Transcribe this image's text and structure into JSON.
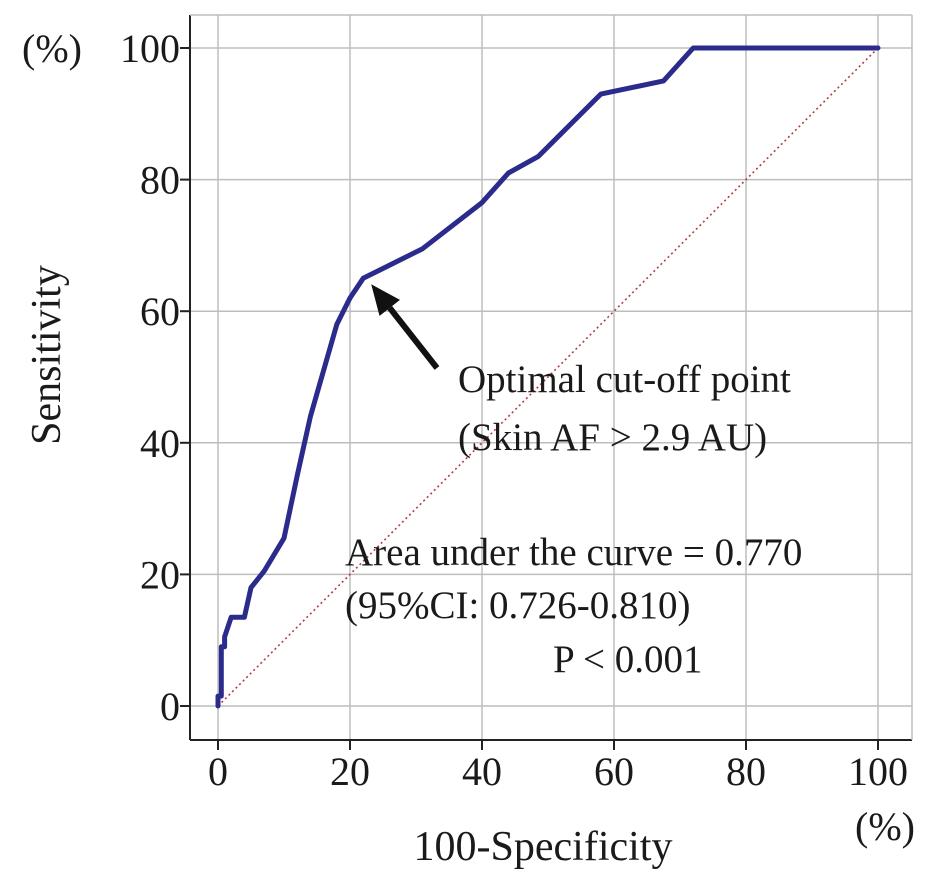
{
  "chart_data": {
    "type": "line",
    "title": "",
    "xlabel": "100-Specificity",
    "ylabel": "Sensitivity",
    "x_unit": "(%)",
    "y_unit": "(%)",
    "xlim": [
      0,
      100
    ],
    "ylim": [
      0,
      100
    ],
    "x_ticks": [
      0,
      20,
      40,
      60,
      80,
      100
    ],
    "y_ticks": [
      0,
      20,
      40,
      60,
      80,
      100
    ],
    "grid": true,
    "series": [
      {
        "color": "#2b2b8c",
        "x": [
          0,
          0,
          0.5,
          0.5,
          1,
          1,
          1.5,
          2,
          3,
          4,
          5,
          7,
          10,
          12,
          14,
          16,
          18,
          20,
          22,
          31,
          40,
          44,
          48.5,
          58,
          67.5,
          72,
          100
        ],
        "y": [
          0,
          1.5,
          1.5,
          9,
          9,
          10.5,
          12,
          13.5,
          13.5,
          13.5,
          18,
          20.5,
          25.5,
          35,
          44,
          51,
          58,
          62,
          65,
          69.5,
          76.5,
          81,
          83.5,
          93,
          95,
          100,
          100
        ]
      },
      {
        "color": "#b04040",
        "style": "dotted",
        "x": [
          0,
          100
        ],
        "y": [
          0,
          100
        ]
      }
    ],
    "annotations": [
      {
        "text_lines": [
          "Optimal  cut-off point",
          "(Skin AF > 2.9 AU)"
        ],
        "arrow_to": [
          22,
          65
        ]
      },
      {
        "text_lines": [
          "Area under the curve = 0.770",
          "(95%CI: 0.726-0.810)",
          "P < 0.001"
        ]
      }
    ]
  }
}
